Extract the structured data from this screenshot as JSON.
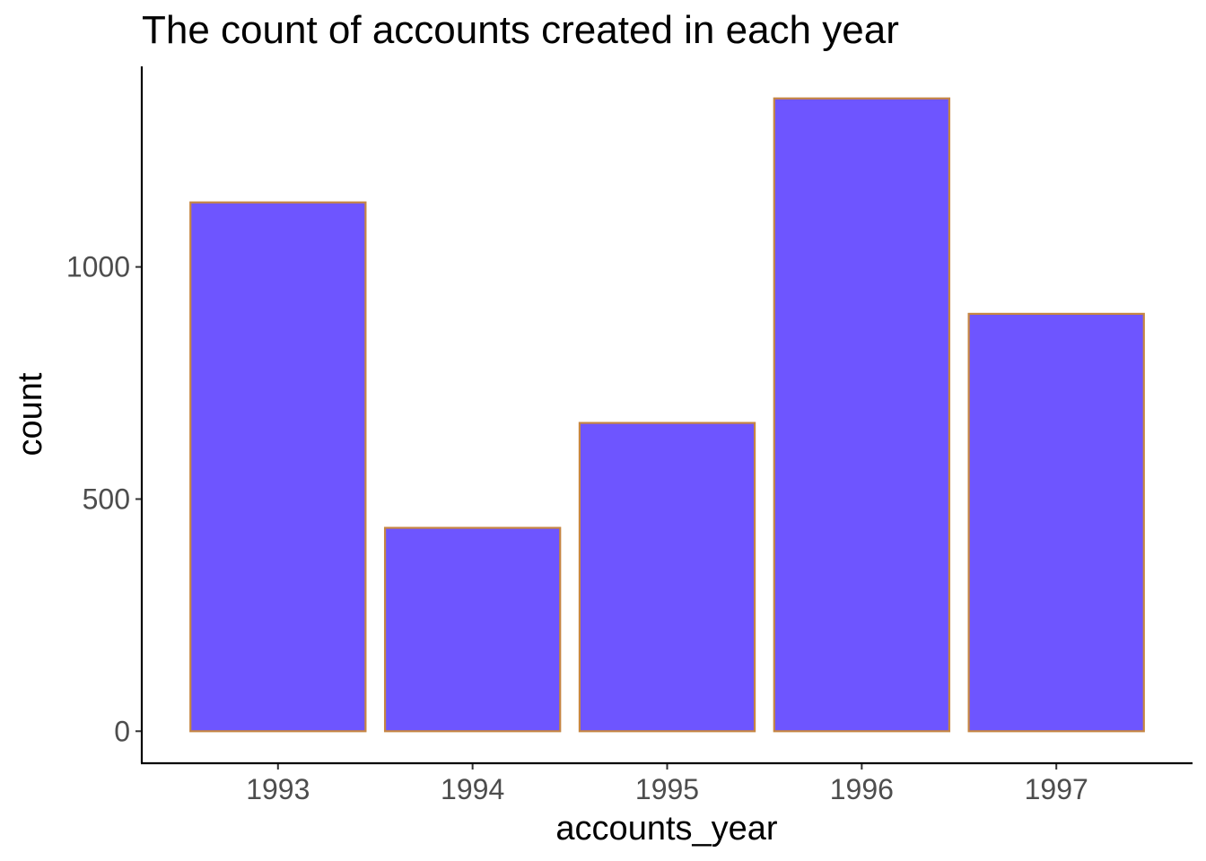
{
  "chart_data": {
    "type": "bar",
    "title": "The count of accounts created in each year",
    "xlabel": "accounts_year",
    "ylabel": "count",
    "categories": [
      "1993",
      "1994",
      "1995",
      "1996",
      "1997"
    ],
    "values": [
      1139,
      438,
      664,
      1363,
      899
    ],
    "ylim": [
      -69,
      1432
    ],
    "yticks": [
      0,
      500,
      1000
    ],
    "grid": false,
    "legend": "none",
    "bar_fill": "#6E55FF",
    "bar_stroke": "#C68642"
  }
}
